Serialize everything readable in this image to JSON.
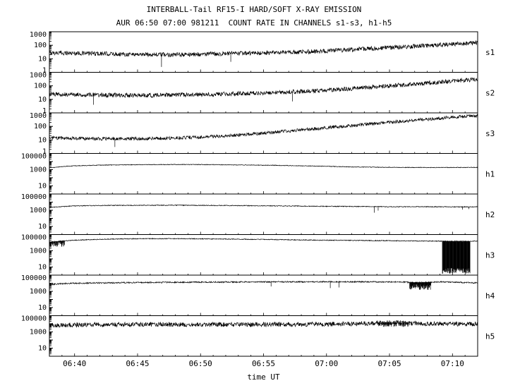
{
  "chart_data": {
    "type": "line",
    "title": "INTERBALL-Tail RF15-I HARD/SOFT X-RAY EMISSION",
    "subtitle": "AUR 06:50 07:00 981211  COUNT RATE IN CHANNELS s1-s3, h1-h5",
    "xlabel": "time UT",
    "x_range": [
      398,
      432
    ],
    "x_ticks": [
      {
        "t": 400,
        "label": "06:40"
      },
      {
        "t": 405,
        "label": "06:45"
      },
      {
        "t": 410,
        "label": "06:50"
      },
      {
        "t": 415,
        "label": "06:55"
      },
      {
        "t": 420,
        "label": "07:00"
      },
      {
        "t": 425,
        "label": "07:05"
      },
      {
        "t": 430,
        "label": "07:10"
      }
    ],
    "x_minor_step_minutes": 1,
    "panels": [
      {
        "name": "s1",
        "ylim": [
          1,
          1000
        ],
        "ytick_labels": [
          1000,
          100,
          10,
          1
        ],
        "noise": 0.16,
        "points": [
          [
            398,
            28
          ],
          [
            400,
            26
          ],
          [
            402,
            24
          ],
          [
            404,
            22
          ],
          [
            406,
            21
          ],
          [
            408,
            20
          ],
          [
            410,
            22
          ],
          [
            412,
            24
          ],
          [
            414,
            26
          ],
          [
            416,
            28
          ],
          [
            418,
            32
          ],
          [
            420,
            38
          ],
          [
            422,
            48
          ],
          [
            424,
            60
          ],
          [
            426,
            75
          ],
          [
            428,
            95
          ],
          [
            430,
            120
          ],
          [
            432,
            150
          ]
        ],
        "spikes": [
          [
            406.9,
            2.5
          ],
          [
            412.4,
            6
          ]
        ],
        "dropouts": []
      },
      {
        "name": "s2",
        "ylim": [
          1,
          1000
        ],
        "ytick_labels": [
          1000,
          100,
          10,
          1
        ],
        "noise": 0.16,
        "points": [
          [
            398,
            24
          ],
          [
            400,
            23
          ],
          [
            402,
            21
          ],
          [
            404,
            20
          ],
          [
            406,
            20
          ],
          [
            408,
            21
          ],
          [
            410,
            23
          ],
          [
            412,
            25
          ],
          [
            414,
            28
          ],
          [
            416,
            32
          ],
          [
            418,
            38
          ],
          [
            420,
            48
          ],
          [
            422,
            62
          ],
          [
            424,
            85
          ],
          [
            426,
            115
          ],
          [
            428,
            160
          ],
          [
            430,
            220
          ],
          [
            432,
            300
          ]
        ],
        "spikes": [
          [
            401.5,
            4
          ],
          [
            417.3,
            7
          ]
        ],
        "dropouts": []
      },
      {
        "name": "s3",
        "ylim": [
          1,
          1000
        ],
        "ytick_labels": [
          1000,
          100,
          10,
          1
        ],
        "noise": 0.12,
        "points": [
          [
            398,
            14
          ],
          [
            400,
            13
          ],
          [
            402,
            12
          ],
          [
            404,
            12
          ],
          [
            406,
            13
          ],
          [
            408,
            14
          ],
          [
            410,
            16
          ],
          [
            412,
            20
          ],
          [
            414,
            27
          ],
          [
            416,
            38
          ],
          [
            418,
            55
          ],
          [
            420,
            80
          ],
          [
            422,
            115
          ],
          [
            424,
            165
          ],
          [
            426,
            240
          ],
          [
            428,
            340
          ],
          [
            430,
            480
          ],
          [
            432,
            620
          ]
        ],
        "spikes": [
          [
            403.2,
            3
          ]
        ],
        "dropouts": []
      },
      {
        "name": "h1",
        "ylim": [
          1,
          100000
        ],
        "ytick_labels": [
          100000,
          1000,
          10
        ],
        "noise": 0.04,
        "points": [
          [
            398,
            1600
          ],
          [
            399,
            2400
          ],
          [
            400,
            3000
          ],
          [
            402,
            3600
          ],
          [
            404,
            4000
          ],
          [
            406,
            4200
          ],
          [
            408,
            4300
          ],
          [
            410,
            4200
          ],
          [
            412,
            4000
          ],
          [
            414,
            3700
          ],
          [
            416,
            3400
          ],
          [
            418,
            3000
          ],
          [
            420,
            2600
          ],
          [
            422,
            2200
          ],
          [
            424,
            2000
          ],
          [
            426,
            1900
          ],
          [
            428,
            1850
          ],
          [
            430,
            1850
          ],
          [
            432,
            1900
          ]
        ],
        "spikes": [],
        "dropouts": []
      },
      {
        "name": "h2",
        "ylim": [
          1,
          100000
        ],
        "ytick_labels": [
          100000,
          1000,
          10
        ],
        "noise": 0.05,
        "points": [
          [
            398,
            2200
          ],
          [
            399,
            2800
          ],
          [
            400,
            3400
          ],
          [
            402,
            3800
          ],
          [
            404,
            4000
          ],
          [
            406,
            4100
          ],
          [
            408,
            4100
          ],
          [
            410,
            4000
          ],
          [
            412,
            3800
          ],
          [
            414,
            3600
          ],
          [
            416,
            3400
          ],
          [
            418,
            3200
          ],
          [
            420,
            3000
          ],
          [
            422,
            2900
          ],
          [
            424,
            2800
          ],
          [
            426,
            2700
          ],
          [
            428,
            2700
          ],
          [
            430,
            2600
          ],
          [
            432,
            2600
          ]
        ],
        "spikes": [
          [
            423.8,
            500
          ],
          [
            424.1,
            900
          ],
          [
            430.8,
            1200
          ],
          [
            431.3,
            1400
          ]
        ],
        "dropouts": []
      },
      {
        "name": "h3",
        "ylim": [
          1,
          100000
        ],
        "ytick_labels": [
          100000,
          1000,
          10
        ],
        "noise": 0.05,
        "points": [
          [
            398,
            12000
          ],
          [
            399,
            16000
          ],
          [
            400,
            20000
          ],
          [
            402,
            26000
          ],
          [
            404,
            30000
          ],
          [
            406,
            31000
          ],
          [
            408,
            31000
          ],
          [
            410,
            30000
          ],
          [
            412,
            28000
          ],
          [
            414,
            26000
          ],
          [
            416,
            24000
          ],
          [
            418,
            22000
          ],
          [
            420,
            20000
          ],
          [
            422,
            19000
          ],
          [
            424,
            18000
          ],
          [
            426,
            17000
          ],
          [
            428,
            16000
          ],
          [
            430,
            15000
          ],
          [
            432,
            15000
          ]
        ],
        "spikes": [],
        "dropouts": [
          {
            "t0": 398.0,
            "t1": 399.2,
            "min": 3000
          },
          {
            "t0": 429.2,
            "t1": 431.4,
            "min": 1.5
          }
        ]
      },
      {
        "name": "h4",
        "ylim": [
          1,
          100000
        ],
        "ytick_labels": [
          100000,
          1000,
          10
        ],
        "noise": 0.08,
        "points": [
          [
            398,
            7000
          ],
          [
            399,
            9000
          ],
          [
            400,
            10000
          ],
          [
            402,
            11000
          ],
          [
            404,
            12000
          ],
          [
            406,
            12500
          ],
          [
            408,
            13000
          ],
          [
            410,
            13500
          ],
          [
            412,
            14000
          ],
          [
            414,
            14500
          ],
          [
            416,
            15000
          ],
          [
            418,
            15000
          ],
          [
            420,
            15000
          ],
          [
            422,
            15000
          ],
          [
            424,
            14500
          ],
          [
            426,
            14000
          ],
          [
            427,
            12000
          ],
          [
            428,
            13000
          ],
          [
            429,
            15000
          ],
          [
            430,
            14000
          ],
          [
            431,
            12000
          ],
          [
            432,
            11000
          ]
        ],
        "spikes": [
          [
            415.6,
            4000
          ],
          [
            420.3,
            2500
          ],
          [
            421.0,
            3000
          ]
        ],
        "dropouts": [
          {
            "t0": 426.6,
            "t1": 428.3,
            "min": 1500
          }
        ]
      },
      {
        "name": "h5",
        "ylim": [
          1,
          100000
        ],
        "ytick_labels": [
          100000,
          1000,
          10
        ],
        "noise": 0.28,
        "points": [
          [
            398,
            6500
          ],
          [
            400,
            7500
          ],
          [
            402,
            8000
          ],
          [
            404,
            8000
          ],
          [
            406,
            8200
          ],
          [
            408,
            8200
          ],
          [
            410,
            8000
          ],
          [
            412,
            8000
          ],
          [
            414,
            8200
          ],
          [
            416,
            8500
          ],
          [
            418,
            8500
          ],
          [
            420,
            9000
          ],
          [
            422,
            10000
          ],
          [
            424,
            12000
          ],
          [
            425,
            14000
          ],
          [
            426,
            13000
          ],
          [
            427,
            11000
          ],
          [
            428,
            10500
          ],
          [
            429,
            11000
          ],
          [
            430,
            10000
          ],
          [
            431,
            9500
          ],
          [
            432,
            9000
          ]
        ],
        "spikes": [],
        "dropouts": [
          {
            "t0": 424.0,
            "t1": 426.5,
            "min": 4000
          }
        ]
      }
    ]
  }
}
